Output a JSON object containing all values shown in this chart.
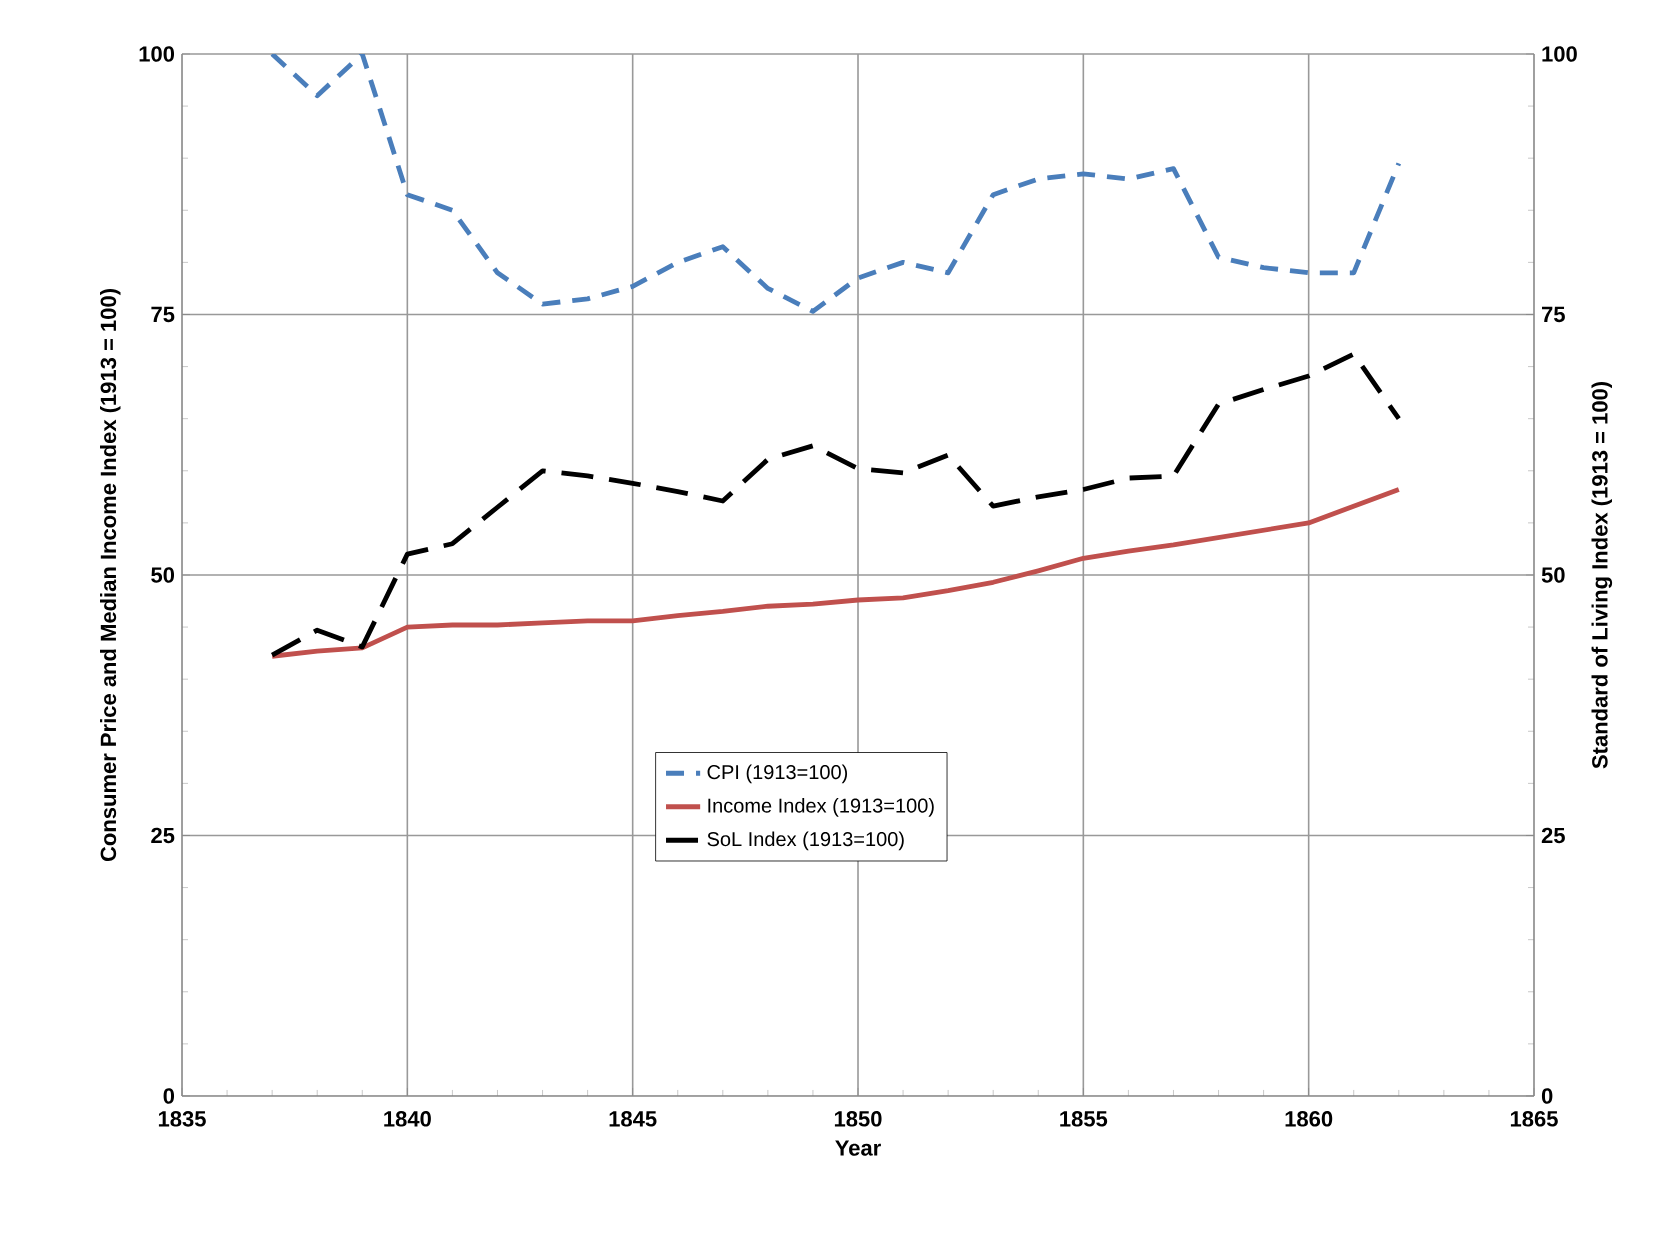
{
  "chart_data": {
    "type": "line",
    "xlabel": "Year",
    "ylabel": "Consumer Price and Median Income Index (1913 = 100)",
    "y2label": "Standard of Living Index (1913 = 100)",
    "x": [
      1837,
      1838,
      1839,
      1840,
      1841,
      1842,
      1843,
      1844,
      1845,
      1846,
      1847,
      1848,
      1849,
      1850,
      1851,
      1852,
      1853,
      1854,
      1855,
      1856,
      1857,
      1858,
      1859,
      1860,
      1861,
      1862
    ],
    "series": [
      {
        "name": "CPI (1913=100)",
        "color": "#4a7ebb",
        "line_style": "dashed",
        "values": [
          100,
          96,
          100,
          86.5,
          85,
          79,
          76,
          76.5,
          77.7,
          80,
          81.5,
          77.5,
          75.3,
          78.5,
          80,
          79,
          86.5,
          88,
          88.5,
          88,
          89,
          80.5,
          79.5,
          79,
          79,
          89.5
        ]
      },
      {
        "name": "Income Index (1913=100)",
        "color": "#c0504d",
        "line_style": "solid",
        "values": [
          42.2,
          42.7,
          43,
          45,
          45.2,
          45.2,
          45.4,
          45.6,
          45.6,
          46.1,
          46.5,
          47,
          47.2,
          47.6,
          47.8,
          48.5,
          49.3,
          50.4,
          51.6,
          52.3,
          52.9,
          53.6,
          54.3,
          55,
          56.6,
          58.2
        ]
      },
      {
        "name": "SoL Index (1913=100)",
        "color": "#000000",
        "line_style": "dashed",
        "axis": "y2",
        "values": [
          42.3,
          44.7,
          43.1,
          52,
          53,
          56.5,
          60,
          59.5,
          58.8,
          58,
          57.1,
          61.1,
          62.4,
          60.2,
          59.8,
          61.5,
          56.6,
          57.5,
          58.2,
          59.3,
          59.5,
          66.4,
          67.8,
          69.1,
          71.2,
          65
        ]
      }
    ],
    "xlim": [
      1835,
      1865
    ],
    "xticks": [
      1835,
      1840,
      1845,
      1850,
      1855,
      1860,
      1865
    ],
    "ylim": [
      0,
      100
    ],
    "yticks": [
      0,
      25,
      50,
      75,
      100
    ],
    "y2lim": [
      0,
      100
    ],
    "y2ticks": [
      0,
      25,
      50,
      75,
      100
    ],
    "grid": true,
    "legend": "center",
    "marker": "none"
  }
}
